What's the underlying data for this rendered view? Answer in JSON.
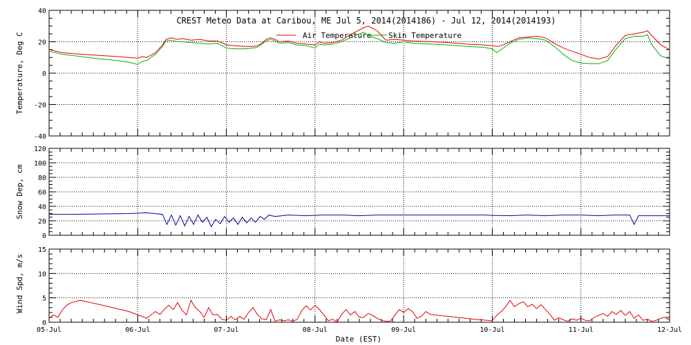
{
  "title": "CREST Meteo Data at Caribou, ME   Jul  5, 2014(2014186) - Jul 12, 2014(2014193)",
  "xlabel": "Date (EST)",
  "x_tick_labels": [
    "05-Jul",
    "06-Jul",
    "07-Jul",
    "08-Jul",
    "09-Jul",
    "10-Jul",
    "11-Jul",
    "12-Jul"
  ],
  "colors": {
    "air": "#e00000",
    "skin": "#00b000",
    "snow": "#0000a0",
    "wind": "#e00000",
    "grid": "#000000"
  },
  "chart_data": [
    {
      "type": "line",
      "ylabel": "Temperature, Deg C",
      "ylim": [
        -40,
        40
      ],
      "yticks": [
        -40,
        -20,
        0,
        20,
        40
      ],
      "grid": true,
      "legend_position": "top-center",
      "x_unit": "days after 05-Jul 00:00 EST",
      "series": [
        {
          "name": "Air Temperature",
          "color": "#e00000",
          "x": [
            0,
            0.15,
            0.3,
            0.5,
            0.7,
            0.9,
            1.0,
            1.05,
            1.1,
            1.2,
            1.28,
            1.32,
            1.38,
            1.45,
            1.5,
            1.6,
            1.7,
            1.8,
            1.9,
            2.0,
            2.1,
            2.2,
            2.3,
            2.35,
            2.4,
            2.45,
            2.5,
            2.55,
            2.6,
            2.7,
            2.8,
            2.9,
            3.0,
            3.05,
            3.1,
            3.2,
            3.3,
            3.4,
            3.5,
            3.55,
            3.6,
            3.7,
            3.8,
            3.9,
            4.0,
            4.1,
            4.3,
            4.5,
            4.7,
            4.9,
            5.0,
            5.05,
            5.1,
            5.2,
            5.3,
            5.4,
            5.5,
            5.6,
            5.7,
            5.8,
            5.9,
            6.0,
            6.1,
            6.2,
            6.3,
            6.4,
            6.5,
            6.6,
            6.7,
            6.75,
            6.8,
            6.9,
            7.0
          ],
          "y": [
            15,
            13,
            12.3,
            11.5,
            10.8,
            10,
            9.5,
            10.5,
            10,
            13,
            18,
            21.5,
            22.5,
            21.5,
            22,
            21,
            21.5,
            20.5,
            20.5,
            18,
            17.5,
            17,
            17,
            17.5,
            19,
            21.5,
            22.5,
            21.5,
            20,
            20.5,
            19,
            18.5,
            18,
            20,
            19,
            19.5,
            21,
            24.5,
            27.5,
            29,
            30,
            27,
            21,
            21.5,
            21,
            20.5,
            20,
            19.5,
            18.5,
            18,
            17.5,
            17,
            17.5,
            20,
            22.5,
            23,
            23.5,
            22.5,
            19,
            16,
            14,
            12,
            10,
            9,
            10.5,
            18,
            24,
            25,
            26,
            27,
            24,
            18,
            15
          ]
        },
        {
          "name": "Skin Temperature",
          "color": "#00b000",
          "x": [
            0,
            0.15,
            0.3,
            0.5,
            0.7,
            0.9,
            1.0,
            1.05,
            1.1,
            1.2,
            1.28,
            1.32,
            1.38,
            1.45,
            1.5,
            1.6,
            1.7,
            1.8,
            1.9,
            2.0,
            2.1,
            2.2,
            2.3,
            2.35,
            2.4,
            2.45,
            2.5,
            2.55,
            2.6,
            2.7,
            2.8,
            2.9,
            3.0,
            3.05,
            3.1,
            3.2,
            3.3,
            3.4,
            3.5,
            3.55,
            3.6,
            3.7,
            3.8,
            3.9,
            4.0,
            4.1,
            4.3,
            4.5,
            4.7,
            4.9,
            5.0,
            5.05,
            5.1,
            5.2,
            5.3,
            5.4,
            5.5,
            5.6,
            5.7,
            5.8,
            5.9,
            6.0,
            6.1,
            6.2,
            6.3,
            6.4,
            6.5,
            6.6,
            6.7,
            6.75,
            6.8,
            6.9,
            7.0
          ],
          "y": [
            14,
            12,
            11,
            9.5,
            8.5,
            7,
            5.5,
            7.5,
            8,
            12,
            17,
            20.5,
            21,
            20,
            20,
            19.5,
            19,
            18.5,
            19,
            16,
            15.5,
            15.5,
            16,
            16.5,
            18.5,
            20.5,
            21.5,
            20.5,
            19,
            19.5,
            18,
            17.5,
            16,
            18.5,
            18,
            18.5,
            20,
            22.5,
            25,
            26,
            24,
            22,
            19.5,
            19,
            20,
            19,
            18.5,
            18,
            17,
            16.5,
            15.5,
            13,
            15,
            19,
            21.5,
            22.5,
            22,
            21,
            17,
            12,
            8,
            6.5,
            6,
            6,
            8,
            15.5,
            22,
            23.5,
            23.5,
            24.5,
            18,
            11,
            9
          ]
        }
      ]
    },
    {
      "type": "line",
      "ylabel": "Snow Dep, cm",
      "ylim": [
        0,
        120
      ],
      "yticks": [
        0,
        20,
        40,
        60,
        80,
        100,
        120
      ],
      "grid": true,
      "x_unit": "days after 05-Jul 00:00 EST",
      "series": [
        {
          "name": "",
          "color": "#0000a0",
          "x": [
            0,
            0.3,
            0.6,
            0.9,
            1.1,
            1.28,
            1.33,
            1.38,
            1.43,
            1.48,
            1.53,
            1.58,
            1.63,
            1.68,
            1.73,
            1.78,
            1.83,
            1.88,
            1.93,
            1.98,
            2.03,
            2.08,
            2.13,
            2.18,
            2.23,
            2.28,
            2.33,
            2.38,
            2.43,
            2.48,
            2.55,
            2.7,
            2.9,
            3.1,
            3.3,
            3.5,
            3.7,
            3.9,
            4.1,
            4.3,
            4.5,
            4.7,
            4.9,
            5.0,
            5.2,
            5.4,
            5.6,
            5.8,
            6.0,
            6.2,
            6.4,
            6.55,
            6.6,
            6.65,
            6.8,
            7.0
          ],
          "y": [
            29,
            29,
            29.5,
            30,
            31,
            29,
            15,
            28,
            14,
            27,
            13,
            26,
            15,
            28,
            18,
            25,
            12,
            22,
            16,
            26,
            18,
            24,
            15,
            25,
            17,
            24,
            18,
            26,
            22,
            28,
            26,
            28,
            27,
            28,
            28,
            27,
            28,
            28,
            28,
            28,
            28,
            28,
            28,
            27.5,
            27,
            28,
            27,
            28,
            28,
            27,
            28,
            28,
            15,
            27,
            27,
            27
          ]
        }
      ]
    },
    {
      "type": "line",
      "ylabel": "Wind Spd, m/s",
      "ylim": [
        0,
        15
      ],
      "yticks": [
        0,
        5,
        10,
        15
      ],
      "grid": true,
      "x_unit": "days after 05-Jul 00:00 EST",
      "series": [
        {
          "name": "",
          "color": "#e00000",
          "x": [
            0,
            0.05,
            0.1,
            0.15,
            0.2,
            0.25,
            0.35,
            0.6,
            0.9,
            1.0,
            1.05,
            1.1,
            1.15,
            1.2,
            1.25,
            1.3,
            1.35,
            1.4,
            1.45,
            1.5,
            1.55,
            1.6,
            1.65,
            1.7,
            1.75,
            1.8,
            1.85,
            1.9,
            1.95,
            2.0,
            2.05,
            2.1,
            2.15,
            2.2,
            2.25,
            2.3,
            2.35,
            2.4,
            2.45,
            2.5,
            2.55,
            2.6,
            2.65,
            2.7,
            2.75,
            2.8,
            2.85,
            2.9,
            2.95,
            3.0,
            3.05,
            3.1,
            3.15,
            3.2,
            3.25,
            3.3,
            3.35,
            3.4,
            3.45,
            3.5,
            3.55,
            3.6,
            3.65,
            3.7,
            3.75,
            3.8,
            3.85,
            3.9,
            3.95,
            4.0,
            4.05,
            4.1,
            4.15,
            4.2,
            4.25,
            4.3,
            4.4,
            4.6,
            4.8,
            5.0,
            5.05,
            5.1,
            5.15,
            5.2,
            5.25,
            5.3,
            5.35,
            5.4,
            5.45,
            5.5,
            5.55,
            5.6,
            5.65,
            5.7,
            5.75,
            5.8,
            5.85,
            5.9,
            5.95,
            6.0,
            6.05,
            6.1,
            6.15,
            6.2,
            6.25,
            6.3,
            6.35,
            6.4,
            6.45,
            6.5,
            6.55,
            6.6,
            6.65,
            6.7,
            6.75,
            6.8,
            6.85,
            6.9,
            6.95,
            7.0
          ],
          "y": [
            0.8,
            1.5,
            1,
            2.5,
            3.5,
            4,
            4.5,
            3.5,
            2.2,
            1.5,
            1.2,
            0.8,
            1.5,
            2.2,
            1.6,
            2.6,
            3.5,
            2.6,
            4,
            2.5,
            1.5,
            4.5,
            3,
            2.2,
            1,
            3,
            1.5,
            1.6,
            0.6,
            0.4,
            1.2,
            0.5,
            1.2,
            0.6,
            2,
            3,
            1.6,
            0.7,
            0.5,
            2.6,
            0.2,
            0.5,
            0.3,
            0.5,
            0.2,
            0.6,
            2.4,
            3.4,
            2.5,
            3.5,
            2.6,
            1.5,
            0.3,
            0.6,
            0,
            1.6,
            2.6,
            1.5,
            2.2,
            1,
            1,
            1.8,
            1.4,
            0.8,
            0.4,
            0.2,
            0.2,
            1.4,
            2.6,
            2.0,
            2.8,
            2.2,
            0.8,
            1.2,
            2.2,
            1.6,
            1.4,
            1.0,
            0.6,
            0.3,
            1.4,
            2.2,
            3.2,
            4.5,
            3.2,
            3.8,
            4.2,
            3.2,
            3.7,
            2.8,
            3.6,
            2.6,
            1.6,
            0.4,
            0.9,
            0.5,
            0.2,
            0.7,
            0.4,
            0.8,
            0.4,
            0.3,
            1.0,
            1.4,
            1.8,
            1.2,
            2.2,
            1.6,
            2.4,
            1.4,
            2.2,
            0.8,
            1.5,
            0.4,
            0.6,
            0.2,
            0.4,
            0.8,
            1.0,
            0.4
          ]
        }
      ]
    }
  ]
}
